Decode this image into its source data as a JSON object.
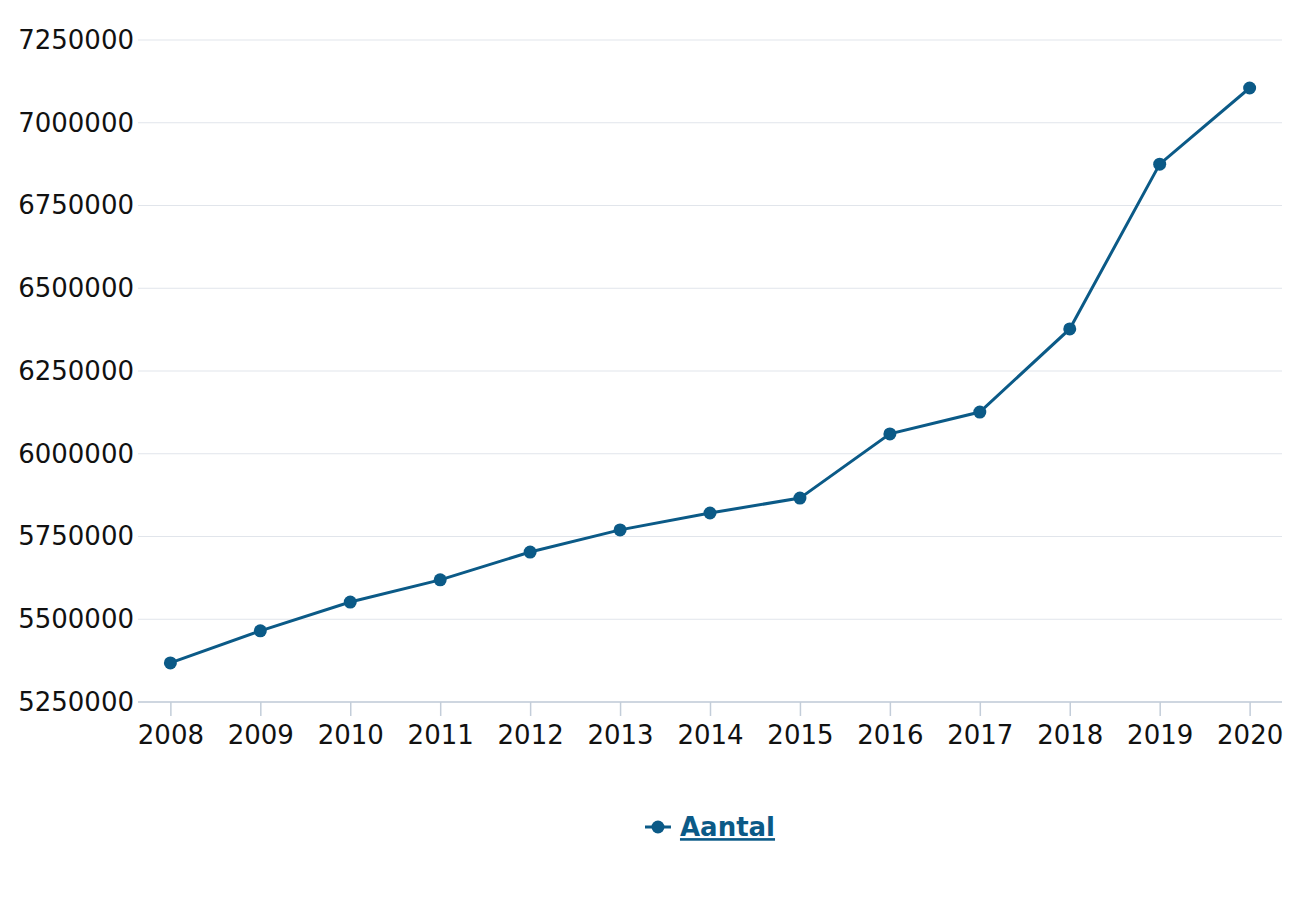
{
  "chart_data": {
    "type": "line",
    "categories": [
      "2008",
      "2009",
      "2010",
      "2011",
      "2012",
      "2013",
      "2014",
      "2015",
      "2016",
      "2017",
      "2018",
      "2019",
      "2020"
    ],
    "series": [
      {
        "name": "Aantal",
        "color": "#0b5a87",
        "marker": "circle",
        "values": [
          5368000,
          5465000,
          5552000,
          5619000,
          5703000,
          5770000,
          5821000,
          5866000,
          6060000,
          6126000,
          6377000,
          6875000,
          7105000
        ]
      }
    ],
    "ylim": [
      5250000,
      7250000
    ],
    "yticks": [
      5250000,
      5500000,
      5750000,
      6000000,
      6250000,
      6500000,
      6750000,
      7000000,
      7250000
    ],
    "grid": true,
    "legend": "bottom"
  }
}
